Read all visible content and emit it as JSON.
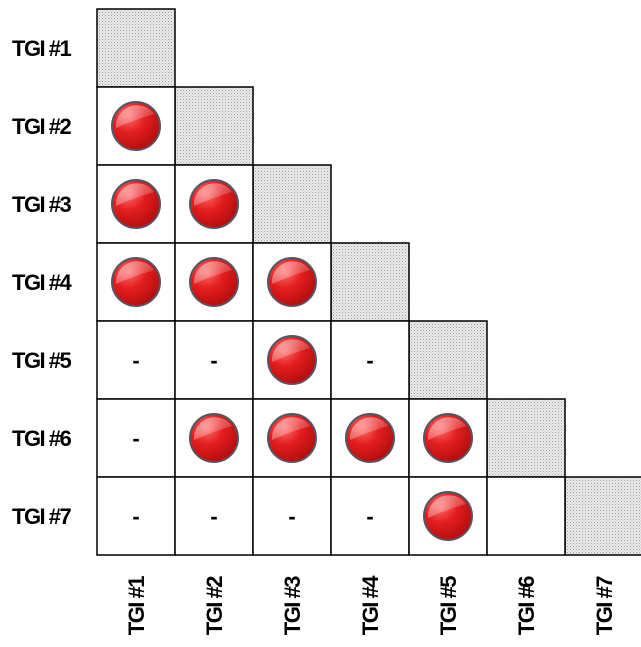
{
  "row_labels": [
    "TGI #1",
    "TGI #2",
    "TGI #3",
    "TGI #4",
    "TGI #5",
    "TGI #6",
    "TGI #7"
  ],
  "col_labels": [
    "TGI #1",
    "TGI #2",
    "TGI #3",
    "TGI #4",
    "TGI #5",
    "TGI #6",
    "TGI #7"
  ],
  "cells": [
    [],
    [
      "dot"
    ],
    [
      "dot",
      "dot"
    ],
    [
      "dot",
      "dot",
      "dot"
    ],
    [
      "-",
      "-",
      "dot",
      "-"
    ],
    [
      "-",
      "dot",
      "dot",
      "dot",
      "dot"
    ],
    [
      "-",
      "-",
      "-",
      "-",
      "dot",
      ""
    ]
  ],
  "colors": {
    "dot_fill": "#e02020",
    "dot_stroke": "#555566",
    "diagonal_fill": "#d8d8d8",
    "grid_line": "#000000"
  }
}
